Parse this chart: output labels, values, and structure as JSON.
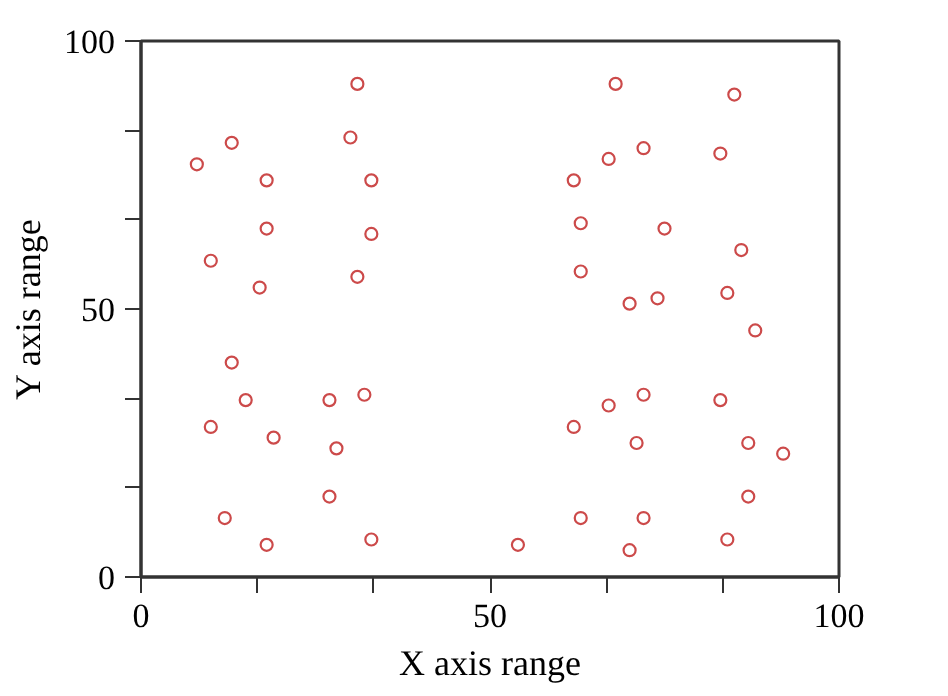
{
  "chart_data": {
    "type": "scatter",
    "xlabel": "X axis range",
    "ylabel": "Y axis range",
    "xlim": [
      0,
      100
    ],
    "ylim": [
      0,
      100
    ],
    "xticks": [
      0,
      {
        "value": 16.67,
        "label": null
      },
      {
        "value": 33.33,
        "label": null
      },
      50,
      {
        "value": 66.67,
        "label": null
      },
      {
        "value": 83.33,
        "label": null
      },
      100
    ],
    "yticks": [
      0,
      {
        "value": 16.67,
        "label": null
      },
      {
        "value": 33.33,
        "label": null
      },
      50,
      {
        "value": 66.67,
        "label": null
      },
      {
        "value": 83.33,
        "label": null
      },
      100
    ],
    "grid": false,
    "marker": "circle",
    "series": [
      {
        "color": "#cc4a4a",
        "x": [
          31,
          13,
          30,
          8,
          18,
          33,
          18,
          33,
          10,
          31,
          17,
          68,
          85,
          72,
          67,
          83,
          62,
          63,
          75,
          86,
          63,
          70,
          74,
          84,
          88,
          72,
          67,
          83,
          62,
          71,
          87,
          92,
          87,
          63,
          72,
          54,
          70,
          84,
          13,
          15,
          27,
          32,
          10,
          19,
          28,
          27,
          12,
          18,
          33
        ],
        "values": [
          92,
          81,
          82,
          77,
          74,
          74,
          65,
          64,
          59,
          56,
          54,
          92,
          90,
          80,
          78,
          79,
          74,
          66,
          65,
          61,
          57,
          51,
          52,
          53,
          46,
          34,
          32,
          33,
          28,
          25,
          25,
          23,
          15,
          11,
          11,
          6,
          5,
          7,
          40,
          33,
          33,
          34,
          28,
          26,
          24,
          15,
          11,
          6,
          7
        ]
      }
    ]
  }
}
